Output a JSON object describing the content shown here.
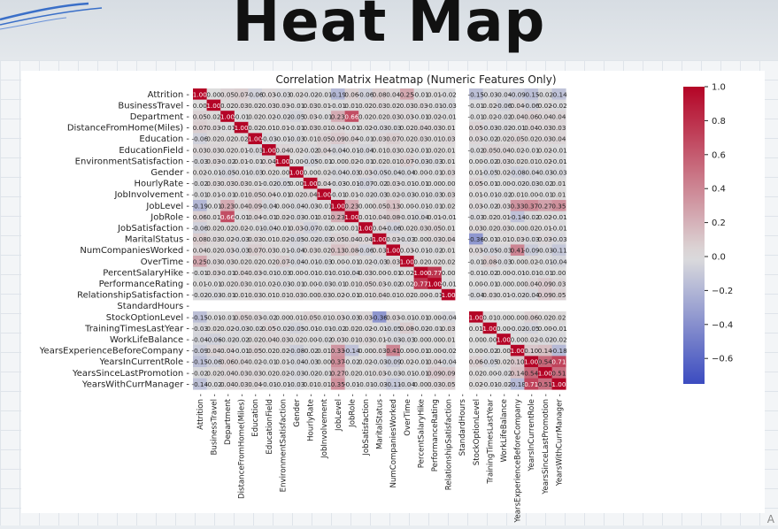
{
  "page": {
    "title": "Heat Map",
    "corner_text": "A"
  },
  "chart_data": {
    "type": "heatmap",
    "title": "Correlation Matrix Heatmap (Numeric Features Only)",
    "labels": [
      "Attrition",
      "BusinessTravel",
      "Department",
      "DistanceFromHome(Miles)",
      "Education",
      "EducationField",
      "EnvironmentSatisfaction",
      "Gender",
      "HourlyRate",
      "JobInvolvement",
      "JobLevel",
      "JobRole",
      "JobSatisfaction",
      "MaritalStatus",
      "NumCompaniesWorked",
      "OverTime",
      "PercentSalaryHike",
      "PerformanceRating",
      "RelationshipSatisfaction",
      "StandardHours",
      "StockOptionLevel",
      "TrainingTimesLastYear",
      "WorkLifeBalance",
      "YearsExperienceBeforeCompany",
      "YearsInCurrentRole",
      "YearsSinceLastPromotion",
      "YearsWithCurrManager"
    ],
    "colormap": "coolwarm",
    "vmin": -0.75,
    "vmax": 1.0,
    "colorbar_ticks": [
      1.0,
      0.8,
      0.6,
      0.4,
      0.2,
      0.0,
      -0.2,
      -0.4,
      -0.6
    ],
    "colors": {
      "low": "#3b4cc0",
      "mid": "#dddddd",
      "high": "#b40426",
      "nan_cell": "#ffffff"
    },
    "nan_index": 19,
    "cells": [
      [
        0,
        1,
        0.0
      ],
      [
        0,
        2,
        0.05
      ],
      [
        0,
        3,
        0.07
      ],
      [
        0,
        4,
        -0.06
      ],
      [
        0,
        5,
        0.03
      ],
      [
        0,
        6,
        -0.03
      ],
      [
        0,
        7,
        0.02
      ],
      [
        0,
        8,
        -0.02
      ],
      [
        0,
        9,
        -0.01
      ],
      [
        0,
        10,
        -0.19
      ],
      [
        0,
        11,
        0.06
      ],
      [
        0,
        12,
        -0.06
      ],
      [
        0,
        13,
        0.08
      ],
      [
        0,
        14,
        0.04
      ],
      [
        0,
        15,
        0.25
      ],
      [
        0,
        16,
        -0.01
      ],
      [
        0,
        17,
        0.01
      ],
      [
        0,
        18,
        -0.02
      ],
      [
        0,
        20,
        -0.15
      ],
      [
        0,
        21,
        -0.03
      ],
      [
        0,
        22,
        -0.04
      ],
      [
        0,
        23,
        -0.09
      ],
      [
        0,
        24,
        -0.15
      ],
      [
        0,
        25,
        -0.02
      ],
      [
        0,
        26,
        -0.14
      ],
      [
        1,
        2,
        0.02
      ],
      [
        1,
        3,
        0.03
      ],
      [
        1,
        4,
        0.02
      ],
      [
        1,
        5,
        0.03
      ],
      [
        1,
        6,
        0.03
      ],
      [
        1,
        7,
        -0.01
      ],
      [
        1,
        8,
        0.03
      ],
      [
        1,
        9,
        0.01
      ],
      [
        1,
        10,
        -0.01
      ],
      [
        1,
        11,
        0.01
      ],
      [
        1,
        12,
        0.02
      ],
      [
        1,
        13,
        0.03
      ],
      [
        1,
        14,
        0.02
      ],
      [
        1,
        15,
        0.03
      ],
      [
        1,
        16,
        0.03
      ],
      [
        1,
        17,
        -0.01
      ],
      [
        1,
        18,
        -0.03
      ],
      [
        1,
        20,
        -0.01
      ],
      [
        1,
        21,
        0.02
      ],
      [
        1,
        22,
        -0.06
      ],
      [
        1,
        23,
        0.04
      ],
      [
        1,
        24,
        -0.06
      ],
      [
        1,
        25,
        0.02
      ],
      [
        1,
        26,
        -0.02
      ],
      [
        2,
        3,
        -0.01
      ],
      [
        2,
        4,
        0.02
      ],
      [
        2,
        5,
        0.02
      ],
      [
        2,
        6,
        -0.02
      ],
      [
        2,
        7,
        -0.05
      ],
      [
        2,
        8,
        0.03
      ],
      [
        2,
        9,
        -0.01
      ],
      [
        2,
        10,
        0.23
      ],
      [
        2,
        11,
        0.66
      ],
      [
        2,
        12,
        0.02
      ],
      [
        2,
        13,
        0.02
      ],
      [
        2,
        14,
        0.03
      ],
      [
        2,
        15,
        0.03
      ],
      [
        2,
        16,
        -0.01
      ],
      [
        2,
        17,
        0.02
      ],
      [
        2,
        18,
        -0.01
      ],
      [
        2,
        20,
        -0.01
      ],
      [
        2,
        21,
        0.02
      ],
      [
        2,
        22,
        -0.02
      ],
      [
        2,
        23,
        0.04
      ],
      [
        2,
        24,
        0.06
      ],
      [
        2,
        25,
        0.04
      ],
      [
        2,
        26,
        0.04
      ],
      [
        3,
        4,
        0.02
      ],
      [
        3,
        5,
        0.01
      ],
      [
        3,
        6,
        0.01
      ],
      [
        3,
        7,
        -0.01
      ],
      [
        3,
        8,
        0.03
      ],
      [
        3,
        9,
        0.01
      ],
      [
        3,
        10,
        0.04
      ],
      [
        3,
        11,
        -0.01
      ],
      [
        3,
        12,
        0.02
      ],
      [
        3,
        13,
        -0.03
      ],
      [
        3,
        14,
        -0.03
      ],
      [
        3,
        15,
        0.02
      ],
      [
        3,
        16,
        0.04
      ],
      [
        3,
        17,
        0.03
      ],
      [
        3,
        18,
        0.01
      ],
      [
        3,
        20,
        0.05
      ],
      [
        3,
        21,
        -0.03
      ],
      [
        3,
        22,
        -0.02
      ],
      [
        3,
        23,
        -0.01
      ],
      [
        3,
        24,
        0.04
      ],
      [
        3,
        25,
        0.03
      ],
      [
        3,
        26,
        0.03
      ],
      [
        4,
        5,
        -0.03
      ],
      [
        4,
        6,
        -0.01
      ],
      [
        4,
        7,
        -0.03
      ],
      [
        4,
        8,
        0.01
      ],
      [
        4,
        9,
        0.05
      ],
      [
        4,
        10,
        0.09
      ],
      [
        4,
        11,
        0.04
      ],
      [
        4,
        12,
        -0.01
      ],
      [
        4,
        13,
        0.03
      ],
      [
        4,
        14,
        0.07
      ],
      [
        4,
        15,
        0.02
      ],
      [
        4,
        16,
        0.03
      ],
      [
        4,
        17,
        0.01
      ],
      [
        4,
        18,
        0.03
      ],
      [
        4,
        20,
        0.03
      ],
      [
        4,
        21,
        -0.02
      ],
      [
        4,
        22,
        0.02
      ],
      [
        4,
        23,
        0.05
      ],
      [
        4,
        24,
        0.02
      ],
      [
        4,
        25,
        0.03
      ],
      [
        4,
        26,
        0.04
      ],
      [
        5,
        6,
        0.04
      ],
      [
        5,
        7,
        0.02
      ],
      [
        5,
        8,
        -0.02
      ],
      [
        5,
        9,
        0.04
      ],
      [
        5,
        10,
        -0.04
      ],
      [
        5,
        11,
        -0.01
      ],
      [
        5,
        12,
        -0.04
      ],
      [
        5,
        13,
        0.01
      ],
      [
        5,
        14,
        0.03
      ],
      [
        5,
        15,
        0.02
      ],
      [
        5,
        16,
        -0.01
      ],
      [
        5,
        17,
        0.02
      ],
      [
        5,
        18,
        0.01
      ],
      [
        5,
        20,
        -0.02
      ],
      [
        5,
        21,
        0.05
      ],
      [
        5,
        22,
        0.04
      ],
      [
        5,
        23,
        0.02
      ],
      [
        5,
        24,
        -0.01
      ],
      [
        5,
        25,
        0.02
      ],
      [
        5,
        26,
        -0.01
      ],
      [
        6,
        7,
        0.0
      ],
      [
        6,
        8,
        -0.05
      ],
      [
        6,
        9,
        -0.01
      ],
      [
        6,
        10,
        0.0
      ],
      [
        6,
        11,
        0.02
      ],
      [
        6,
        12,
        -0.01
      ],
      [
        6,
        13,
        0.02
      ],
      [
        6,
        14,
        0.01
      ],
      [
        6,
        15,
        0.07
      ],
      [
        6,
        16,
        -0.03
      ],
      [
        6,
        17,
        -0.03
      ],
      [
        6,
        18,
        0.01
      ],
      [
        6,
        20,
        0.0
      ],
      [
        6,
        21,
        -0.02
      ],
      [
        6,
        22,
        0.03
      ],
      [
        6,
        23,
        0.02
      ],
      [
        6,
        24,
        0.01
      ],
      [
        6,
        25,
        0.02
      ],
      [
        6,
        26,
        -0.01
      ],
      [
        7,
        8,
        0.0
      ],
      [
        7,
        9,
        0.02
      ],
      [
        7,
        10,
        -0.04
      ],
      [
        7,
        11,
        -0.03
      ],
      [
        7,
        12,
        0.03
      ],
      [
        7,
        13,
        -0.05
      ],
      [
        7,
        14,
        -0.04
      ],
      [
        7,
        15,
        -0.04
      ],
      [
        7,
        16,
        0.0
      ],
      [
        7,
        17,
        -0.01
      ],
      [
        7,
        18,
        0.03
      ],
      [
        7,
        20,
        0.01
      ],
      [
        7,
        21,
        -0.05
      ],
      [
        7,
        22,
        0.02
      ],
      [
        7,
        23,
        -0.08
      ],
      [
        7,
        24,
        -0.04
      ],
      [
        7,
        25,
        -0.03
      ],
      [
        7,
        26,
        -0.03
      ],
      [
        8,
        9,
        0.04
      ],
      [
        8,
        10,
        -0.03
      ],
      [
        8,
        11,
        -0.01
      ],
      [
        8,
        12,
        -0.07
      ],
      [
        8,
        13,
        -0.02
      ],
      [
        8,
        14,
        0.03
      ],
      [
        8,
        15,
        -0.01
      ],
      [
        8,
        16,
        -0.01
      ],
      [
        8,
        17,
        0.0
      ],
      [
        8,
        18,
        0.0
      ],
      [
        8,
        20,
        0.05
      ],
      [
        8,
        21,
        -0.01
      ],
      [
        8,
        22,
        0.0
      ],
      [
        8,
        23,
        -0.02
      ],
      [
        8,
        24,
        -0.03
      ],
      [
        8,
        25,
        -0.02
      ],
      [
        8,
        26,
        0.01
      ],
      [
        9,
        10,
        -0.01
      ],
      [
        9,
        11,
        0.01
      ],
      [
        9,
        12,
        -0.02
      ],
      [
        9,
        13,
        -0.03
      ],
      [
        9,
        14,
        0.02
      ],
      [
        9,
        15,
        -0.03
      ],
      [
        9,
        16,
        -0.01
      ],
      [
        9,
        17,
        -0.03
      ],
      [
        9,
        18,
        0.03
      ],
      [
        9,
        20,
        0.01
      ],
      [
        9,
        21,
        -0.01
      ],
      [
        9,
        22,
        -0.02
      ],
      [
        9,
        23,
        0.01
      ],
      [
        9,
        24,
        0.0
      ],
      [
        9,
        25,
        -0.01
      ],
      [
        9,
        26,
        0.01
      ],
      [
        10,
        11,
        0.23
      ],
      [
        10,
        12,
        0.0
      ],
      [
        10,
        13,
        0.05
      ],
      [
        10,
        14,
        0.13
      ],
      [
        10,
        15,
        0.0
      ],
      [
        10,
        16,
        -0.01
      ],
      [
        10,
        17,
        -0.01
      ],
      [
        10,
        18,
        0.02
      ],
      [
        10,
        20,
        0.03
      ],
      [
        10,
        21,
        -0.02
      ],
      [
        10,
        22,
        0.03
      ],
      [
        10,
        23,
        0.33
      ],
      [
        10,
        24,
        0.37
      ],
      [
        10,
        25,
        0.27
      ],
      [
        10,
        26,
        0.35
      ],
      [
        11,
        12,
        0.01
      ],
      [
        11,
        13,
        0.04
      ],
      [
        11,
        14,
        0.08
      ],
      [
        11,
        15,
        -0.01
      ],
      [
        11,
        16,
        -0.04
      ],
      [
        11,
        17,
        0.01
      ],
      [
        11,
        18,
        -0.01
      ],
      [
        11,
        20,
        -0.03
      ],
      [
        11,
        21,
        0.02
      ],
      [
        11,
        22,
        0.01
      ],
      [
        11,
        23,
        -0.14
      ],
      [
        11,
        24,
        -0.02
      ],
      [
        11,
        25,
        0.02
      ],
      [
        11,
        26,
        -0.01
      ],
      [
        12,
        13,
        0.04
      ],
      [
        12,
        14,
        -0.06
      ],
      [
        12,
        15,
        0.02
      ],
      [
        12,
        16,
        0.03
      ],
      [
        12,
        17,
        0.05
      ],
      [
        12,
        18,
        0.01
      ],
      [
        12,
        20,
        0.03
      ],
      [
        12,
        21,
        0.02
      ],
      [
        12,
        22,
        0.03
      ],
      [
        12,
        23,
        -0.0
      ],
      [
        12,
        24,
        0.02
      ],
      [
        12,
        25,
        0.01
      ],
      [
        12,
        26,
        -0.01
      ],
      [
        13,
        14,
        0.03
      ],
      [
        13,
        15,
        -0.03
      ],
      [
        13,
        16,
        0.0
      ],
      [
        13,
        17,
        0.03
      ],
      [
        13,
        18,
        0.04
      ],
      [
        13,
        20,
        -0.36
      ],
      [
        13,
        21,
        -0.01
      ],
      [
        13,
        22,
        0.01
      ],
      [
        13,
        23,
        0.03
      ],
      [
        13,
        24,
        -0.03
      ],
      [
        13,
        25,
        0.03
      ],
      [
        13,
        26,
        -0.03
      ],
      [
        14,
        15,
        0.03
      ],
      [
        14,
        16,
        -0.01
      ],
      [
        14,
        17,
        -0.02
      ],
      [
        14,
        18,
        0.01
      ],
      [
        14,
        20,
        0.03
      ],
      [
        14,
        21,
        -0.05
      ],
      [
        14,
        22,
        -0.03
      ],
      [
        14,
        23,
        0.41
      ],
      [
        14,
        24,
        -0.09
      ],
      [
        14,
        25,
        -0.03
      ],
      [
        14,
        26,
        -0.11
      ],
      [
        15,
        16,
        0.02
      ],
      [
        15,
        17,
        0.02
      ],
      [
        15,
        18,
        0.02
      ],
      [
        15,
        20,
        -0.01
      ],
      [
        15,
        21,
        0.08
      ],
      [
        15,
        22,
        -0.03
      ],
      [
        15,
        23,
        0.0
      ],
      [
        15,
        24,
        0.02
      ],
      [
        15,
        25,
        -0.01
      ],
      [
        15,
        26,
        -0.04
      ],
      [
        16,
        17,
        0.77
      ],
      [
        16,
        18,
        0.0
      ],
      [
        16,
        20,
        -0.01
      ],
      [
        16,
        21,
        -0.02
      ],
      [
        16,
        22,
        0.0
      ],
      [
        16,
        23,
        -0.01
      ],
      [
        16,
        24,
        -0.01
      ],
      [
        16,
        25,
        -0.01
      ],
      [
        16,
        26,
        0.0
      ],
      [
        17,
        18,
        -0.01
      ],
      [
        17,
        20,
        -0.0
      ],
      [
        17,
        21,
        -0.01
      ],
      [
        17,
        22,
        0.0
      ],
      [
        17,
        23,
        0.0
      ],
      [
        17,
        24,
        0.04
      ],
      [
        17,
        25,
        0.09
      ],
      [
        17,
        26,
        0.03
      ],
      [
        18,
        20,
        -0.04
      ],
      [
        18,
        21,
        0.03
      ],
      [
        18,
        22,
        0.01
      ],
      [
        18,
        23,
        -0.02
      ],
      [
        18,
        24,
        -0.04
      ],
      [
        18,
        25,
        0.09
      ],
      [
        18,
        26,
        0.05
      ],
      [
        20,
        21,
        0.01
      ],
      [
        20,
        22,
        0.0
      ],
      [
        20,
        23,
        0.0
      ],
      [
        20,
        24,
        0.06
      ],
      [
        20,
        25,
        0.02
      ],
      [
        20,
        26,
        0.02
      ],
      [
        21,
        22,
        0.0
      ],
      [
        21,
        23,
        -0.02
      ],
      [
        21,
        24,
        -0.05
      ],
      [
        21,
        25,
        -0.0
      ],
      [
        21,
        26,
        -0.01
      ],
      [
        22,
        23,
        0.0
      ],
      [
        22,
        24,
        0.02
      ],
      [
        22,
        25,
        -0.02
      ],
      [
        22,
        26,
        -0.02
      ],
      [
        23,
        24,
        0.1
      ],
      [
        23,
        25,
        0.14
      ],
      [
        23,
        26,
        -0.18
      ],
      [
        24,
        25,
        0.54
      ],
      [
        24,
        26,
        0.71
      ],
      [
        25,
        26,
        0.51
      ]
    ]
  }
}
